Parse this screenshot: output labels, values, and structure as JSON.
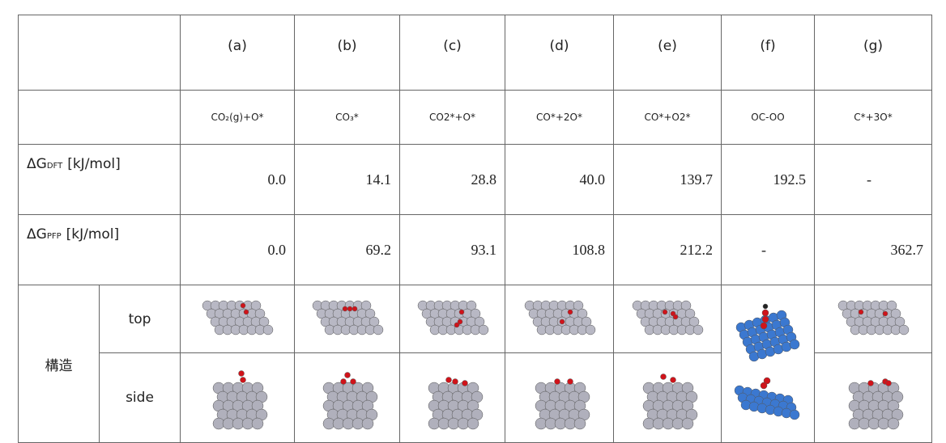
{
  "table": {
    "columns": [
      "(a)",
      "(b)",
      "(c)",
      "(d)",
      "(e)",
      "(f)",
      "(g)"
    ],
    "species": [
      "CO₂(g)+O*",
      "CO₃*",
      "CO2*+O*",
      "CO*+2O*",
      "CO*+O2*",
      "OC-OO",
      "C*+3O*"
    ],
    "rows": [
      {
        "label": {
          "symbol": "ΔG",
          "sub": "DFT",
          "unit": "[kJ/mol]"
        },
        "cells": [
          "0.0",
          "14.1",
          "28.8",
          "40.0",
          "139.7",
          "192.5",
          "-"
        ]
      },
      {
        "label": {
          "symbol": "ΔG",
          "sub": "PFP",
          "unit": "[kJ/mol]"
        },
        "cells": [
          "0.0",
          "69.2",
          "93.1",
          "108.8",
          "212.2",
          "-",
          "362.7"
        ]
      }
    ],
    "structure": {
      "label": "構造",
      "views": [
        "top",
        "side"
      ]
    }
  }
}
